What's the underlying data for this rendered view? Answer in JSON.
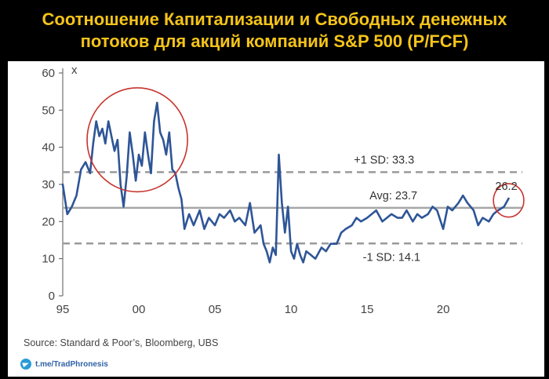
{
  "title": {
    "line1": "Соотношение Капитализации и Свободных денежных",
    "line2": "потоков для акций компаний S&P 500 (P/FCF)"
  },
  "source": "Source: Standard & Poor’s, Bloomberg, UBS",
  "telegram": "t.me/TradPhronesis",
  "colors": {
    "line": "#2e5597",
    "dashed": "#9a9a9a",
    "avg": "#a6a6a6",
    "circle": "#c8332e",
    "title": "#f5c419"
  },
  "chart_data": {
    "type": "line",
    "title": "Соотношение Капитализации и Свободных денежных потоков для акций компаний S&P 500 (P/FCF)",
    "ylabel": "x",
    "xlabel": "",
    "xlim": [
      1995,
      2025.2
    ],
    "ylim": [
      0,
      60
    ],
    "yticks": [
      0,
      10,
      20,
      30,
      40,
      50,
      60
    ],
    "xticks": [
      {
        "value": 1995,
        "label": "95"
      },
      {
        "value": 2000,
        "label": "00"
      },
      {
        "value": 2005,
        "label": "05"
      },
      {
        "value": 2010,
        "label": "10"
      },
      {
        "value": 2015,
        "label": "15"
      },
      {
        "value": 2020,
        "label": "20"
      }
    ],
    "reference_lines": [
      {
        "name": "+1 SD",
        "value": 33.3,
        "label": "+1 SD: 33.3",
        "style": "dashed"
      },
      {
        "name": "Avg",
        "value": 23.7,
        "label": "Avg: 23.7",
        "style": "solid"
      },
      {
        "name": "-1 SD",
        "value": 14.1,
        "label": "-1 SD: 14.1",
        "style": "dashed"
      }
    ],
    "last_value_label": "26.2",
    "highlights": [
      {
        "description": "dot-com peak",
        "x_center": 1999.9,
        "y_center": 42,
        "x_radius": 3.3,
        "y_radius": 14
      },
      {
        "description": "latest",
        "x_center": 2024.3,
        "y_center": 25.7,
        "x_radius": 1.0,
        "y_radius": 4.5
      }
    ],
    "series": [
      {
        "name": "P/FCF",
        "x": [
          1995.0,
          1995.3,
          1995.6,
          1995.9,
          1996.2,
          1996.5,
          1996.8,
          1997.0,
          1997.2,
          1997.4,
          1997.6,
          1997.8,
          1998.0,
          1998.2,
          1998.4,
          1998.6,
          1998.8,
          1999.0,
          1999.2,
          1999.4,
          1999.6,
          1999.8,
          2000.0,
          2000.2,
          2000.4,
          2000.6,
          2000.8,
          2001.0,
          2001.2,
          2001.4,
          2001.6,
          2001.8,
          2002.0,
          2002.2,
          2002.4,
          2002.6,
          2002.8,
          2003.0,
          2003.3,
          2003.6,
          2004.0,
          2004.3,
          2004.6,
          2005.0,
          2005.3,
          2005.6,
          2006.0,
          2006.3,
          2006.6,
          2007.0,
          2007.3,
          2007.6,
          2008.0,
          2008.2,
          2008.4,
          2008.6,
          2008.8,
          2009.0,
          2009.2,
          2009.4,
          2009.6,
          2009.8,
          2010.0,
          2010.2,
          2010.4,
          2010.6,
          2010.8,
          2011.0,
          2011.3,
          2011.6,
          2012.0,
          2012.3,
          2012.6,
          2013.0,
          2013.3,
          2013.6,
          2014.0,
          2014.3,
          2014.6,
          2015.0,
          2015.3,
          2015.6,
          2016.0,
          2016.3,
          2016.6,
          2017.0,
          2017.3,
          2017.6,
          2018.0,
          2018.3,
          2018.6,
          2019.0,
          2019.3,
          2019.6,
          2020.0,
          2020.3,
          2020.6,
          2021.0,
          2021.3,
          2021.6,
          2022.0,
          2022.3,
          2022.6,
          2023.0,
          2023.3,
          2023.6,
          2024.0,
          2024.3
        ],
        "values": [
          30,
          22,
          24,
          27,
          34,
          36,
          33,
          41,
          47,
          43,
          45,
          41,
          47,
          43,
          39,
          42,
          30,
          24,
          32,
          44,
          38,
          31,
          38,
          35,
          44,
          38,
          33,
          47,
          52,
          44,
          42,
          38,
          44,
          34,
          33,
          29,
          26,
          18,
          22,
          19,
          23,
          18,
          21,
          19,
          22,
          21,
          23,
          20,
          21,
          19,
          25,
          17,
          19,
          14,
          12,
          9,
          13,
          11,
          38,
          25,
          17,
          24,
          12,
          10,
          14,
          11,
          9,
          12,
          11,
          10,
          13,
          12,
          14,
          14,
          17,
          18,
          19,
          21,
          20,
          21,
          22,
          23,
          20,
          21,
          22,
          21,
          21,
          23,
          20,
          22,
          21,
          22,
          24,
          23,
          18,
          24,
          23,
          25,
          27,
          25,
          23,
          19,
          21,
          20,
          22,
          23,
          24,
          26.2
        ]
      }
    ]
  }
}
